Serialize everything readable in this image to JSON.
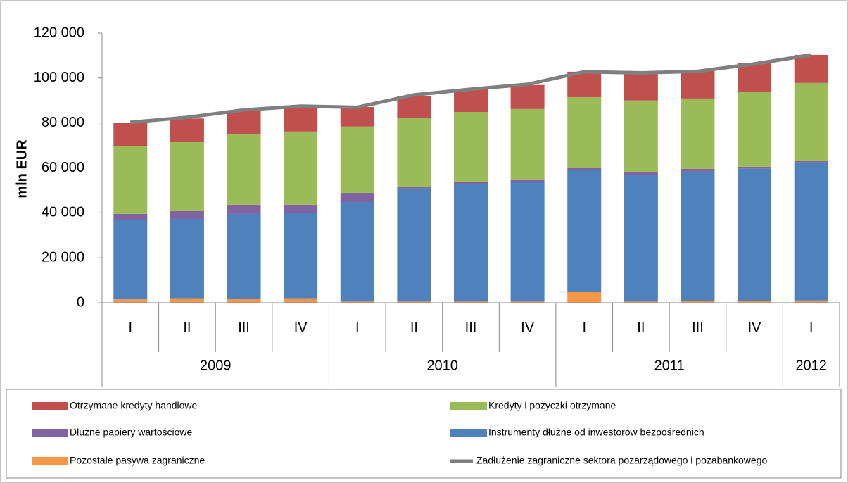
{
  "chart_data": {
    "type": "stacked_bar_line",
    "y_label": "mln EUR",
    "categories": [
      "I",
      "II",
      "III",
      "IV",
      "I",
      "II",
      "III",
      "IV",
      "I",
      "II",
      "III",
      "IV",
      "I"
    ],
    "years": [
      "2009",
      null,
      null,
      null,
      "2010",
      null,
      null,
      null,
      "2011",
      null,
      null,
      null,
      "2012"
    ],
    "ylim": [
      0,
      120000
    ],
    "yticks": [
      0,
      {
        "value": 20000,
        "label": "20 000"
      },
      {
        "value": 40000,
        "label": "40 000"
      },
      {
        "value": 60000,
        "label": "60 000"
      },
      {
        "value": 80000,
        "label": "80 000"
      },
      {
        "value": 100000,
        "label": "100 000"
      },
      {
        "value": 120000,
        "label": "120 000"
      }
    ],
    "series": [
      {
        "name": "Otrzymane kredyty handlowe",
        "color": "#c0504d",
        "kind": "bar",
        "values": [
          10600,
          10500,
          10400,
          10900,
          8700,
          9400,
          10100,
          10700,
          11300,
          12500,
          12500,
          12600,
          12500
        ]
      },
      {
        "name": "Kredyty i pożyczki otrzymane",
        "color": "#9bbb59",
        "kind": "bar",
        "values": [
          30100,
          30700,
          31600,
          32600,
          29500,
          30700,
          31000,
          31300,
          31600,
          32000,
          31300,
          33500,
          34500
        ]
      },
      {
        "name": "Dłużne papiery wartościowe",
        "color": "#8064a2",
        "kind": "bar",
        "values": [
          2800,
          3500,
          4100,
          3800,
          4100,
          900,
          1200,
          1300,
          1000,
          1300,
          1300,
          900,
          900
        ]
      },
      {
        "name": "Instrumenty dłużne od inwestorów bezpośrednich",
        "color": "#4f81bd",
        "kind": "bar",
        "values": [
          35200,
          35300,
          37700,
          37800,
          44300,
          50300,
          52200,
          53100,
          54200,
          56200,
          57600,
          58700,
          61400
        ]
      },
      {
        "name": "Pozostałe pasywa zagraniczne",
        "color": "#f79646",
        "kind": "bar",
        "values": [
          1500,
          2000,
          1800,
          2000,
          500,
          500,
          500,
          500,
          4700,
          500,
          700,
          900,
          1000
        ]
      },
      {
        "name": "Zadłużenie zagraniczne sektora pozarządowego i pozabankowego",
        "color": "#7f7f7f",
        "kind": "line",
        "values": [
          80300,
          82500,
          85800,
          87500,
          87000,
          92500,
          95000,
          97200,
          102800,
          102300,
          103000,
          106300,
          110300
        ]
      }
    ]
  }
}
